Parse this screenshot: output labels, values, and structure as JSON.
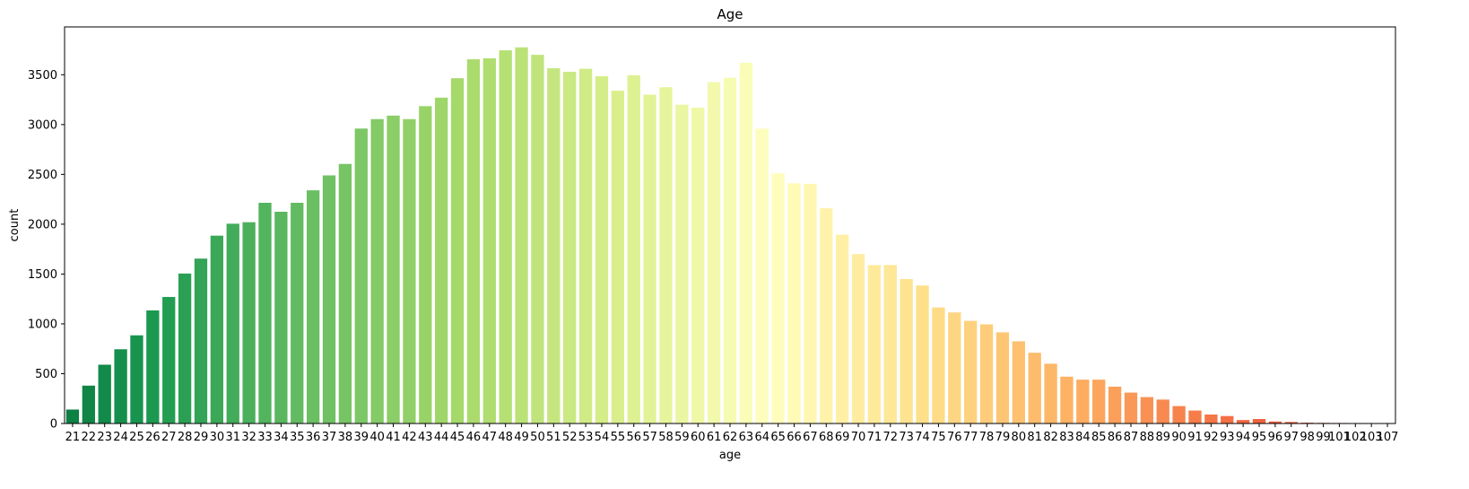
{
  "chart_data": {
    "type": "bar",
    "title": "Age",
    "xlabel": "age",
    "ylabel": "count",
    "ylim": [
      0,
      3980
    ],
    "yticks": [
      0,
      500,
      1000,
      1500,
      2000,
      2500,
      3000,
      3500
    ],
    "grid": false,
    "legend": "none",
    "colormap": "RdYlGn_r",
    "categories": [
      "21",
      "22",
      "23",
      "24",
      "25",
      "26",
      "27",
      "28",
      "29",
      "30",
      "31",
      "32",
      "33",
      "34",
      "35",
      "36",
      "37",
      "38",
      "39",
      "40",
      "41",
      "42",
      "43",
      "44",
      "45",
      "46",
      "47",
      "48",
      "49",
      "50",
      "51",
      "52",
      "53",
      "54",
      "55",
      "56",
      "57",
      "58",
      "59",
      "60",
      "61",
      "62",
      "63",
      "64",
      "65",
      "66",
      "67",
      "68",
      "69",
      "70",
      "71",
      "72",
      "73",
      "74",
      "75",
      "76",
      "77",
      "78",
      "79",
      "80",
      "81",
      "82",
      "83",
      "84",
      "85",
      "86",
      "87",
      "88",
      "89",
      "90",
      "91",
      "92",
      "93",
      "94",
      "95",
      "96",
      "97",
      "98",
      "99",
      "101",
      "102",
      "103",
      "107"
    ],
    "values": [
      140,
      380,
      590,
      745,
      885,
      1135,
      1270,
      1505,
      1655,
      1885,
      2005,
      2020,
      2215,
      2125,
      2215,
      2340,
      2490,
      2605,
      2960,
      3055,
      3090,
      3055,
      3185,
      3270,
      3465,
      3655,
      3665,
      3745,
      3775,
      3700,
      3565,
      3530,
      3560,
      3485,
      3340,
      3495,
      3300,
      3375,
      3200,
      3170,
      3425,
      3470,
      3620,
      2960,
      2510,
      2410,
      2405,
      2160,
      1895,
      1700,
      1590,
      1590,
      1450,
      1385,
      1165,
      1115,
      1030,
      995,
      915,
      825,
      710,
      600,
      470,
      440,
      440,
      370,
      310,
      265,
      240,
      175,
      130,
      90,
      75,
      35,
      45,
      20,
      15,
      8,
      6,
      5,
      4,
      3,
      2
    ]
  }
}
